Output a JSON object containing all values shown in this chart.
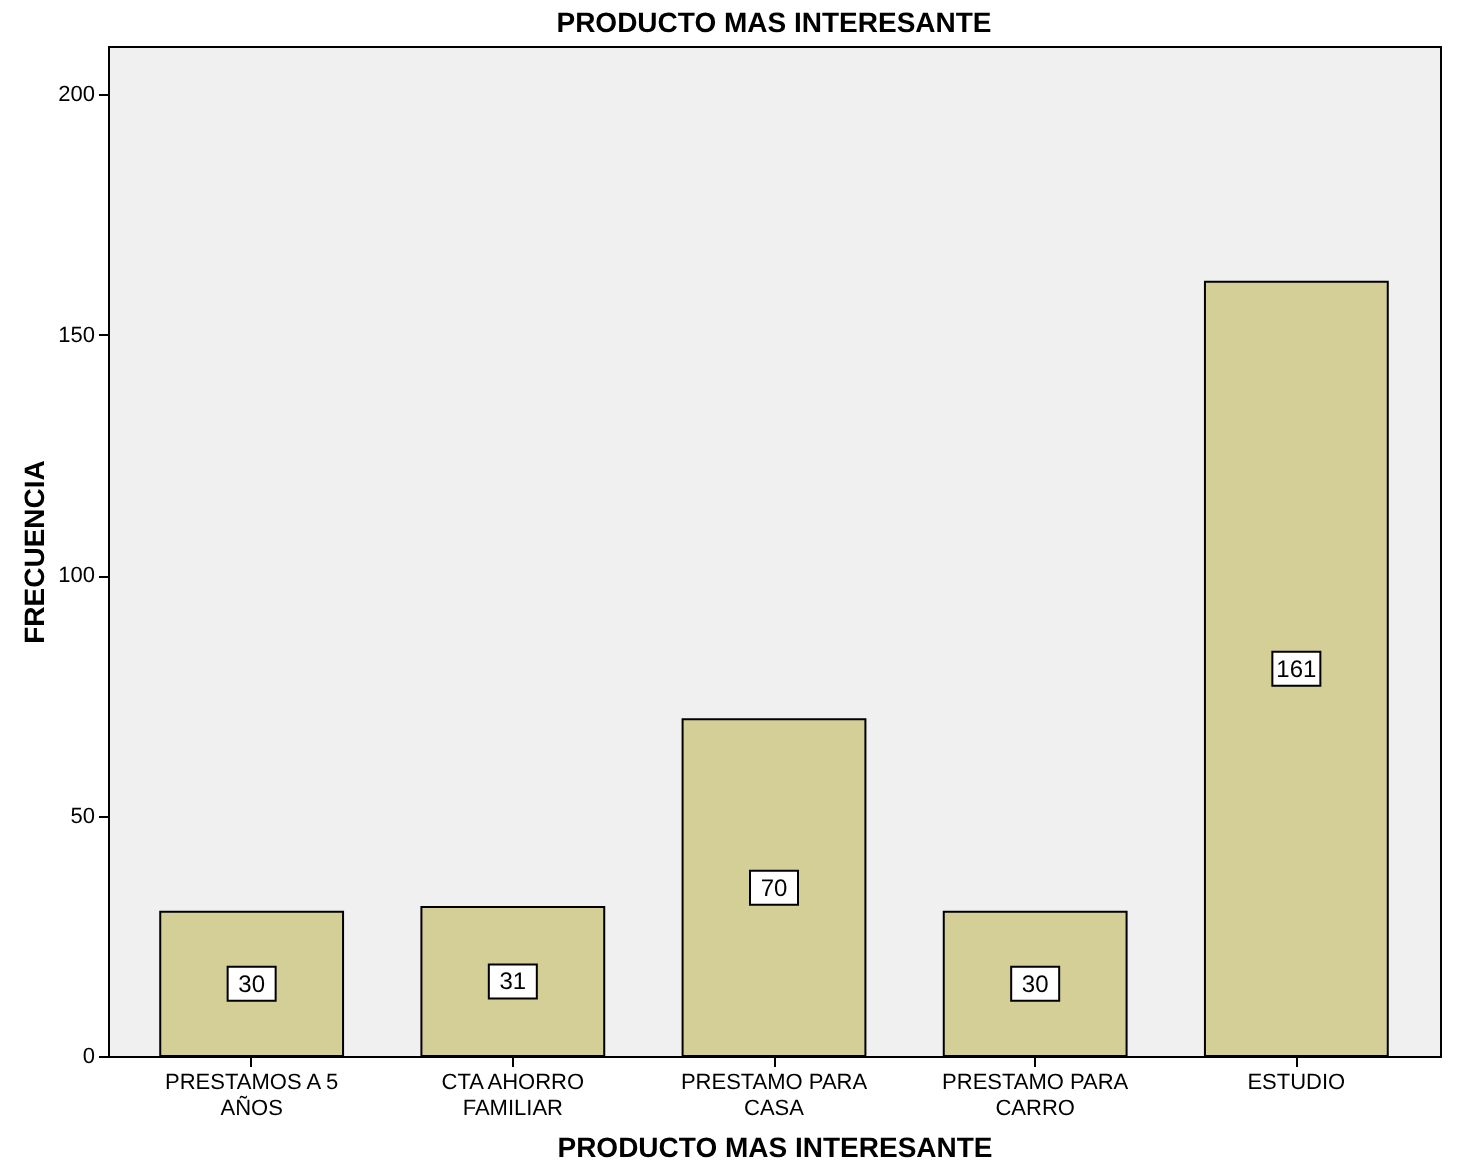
{
  "chart_data": {
    "type": "bar",
    "title": "PRODUCTO MAS INTERESANTE",
    "xlabel": "PRODUCTO MAS INTERESANTE",
    "ylabel": "FRECUENCIA",
    "categories": [
      "PRESTAMOS A 5 AÑOS",
      "CTA AHORRO FAMILIAR",
      "PRESTAMO PARA CASA",
      "PRESTAMO PARA CARRO",
      "ESTUDIO"
    ],
    "values": [
      30,
      31,
      70,
      30,
      161
    ],
    "color": "#d4cf96",
    "ylim": [
      0,
      210
    ],
    "yticks": [
      0,
      50,
      100,
      150,
      200
    ],
    "grid": false,
    "data_labels": true
  }
}
